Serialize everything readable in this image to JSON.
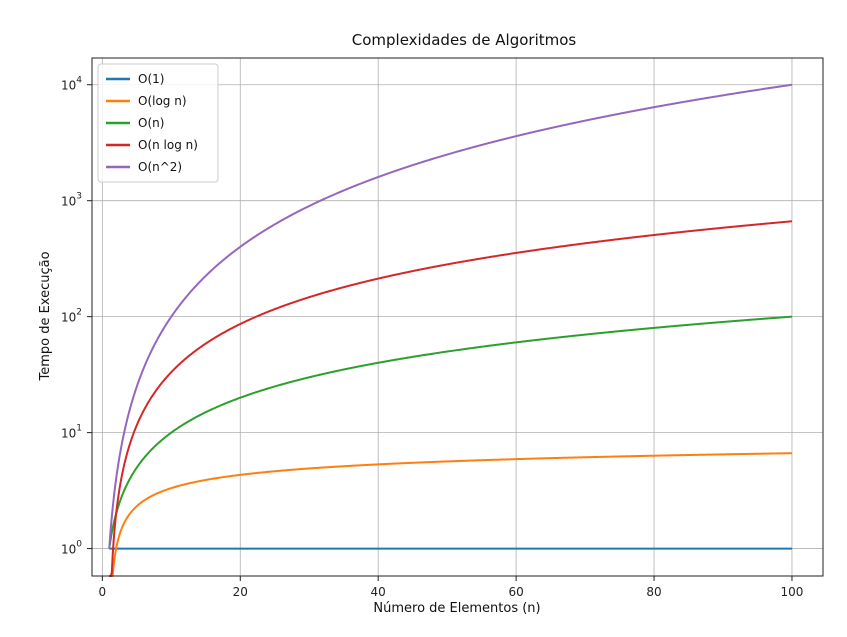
{
  "chart_data": {
    "type": "line",
    "title": "Complexidades de Algoritmos",
    "xlabel": "Número de Elementos (n)",
    "ylabel": "Tempo de Execução",
    "x_range": [
      1,
      100
    ],
    "xlim": [
      -1.5,
      104.5
    ],
    "ylim": [
      0.58,
      17000
    ],
    "yscale": "log",
    "grid": true,
    "legend_position": "top-left",
    "x_ticks": [
      0,
      20,
      40,
      60,
      80,
      100
    ],
    "y_ticks": [
      {
        "value": 1,
        "base": "10",
        "exp": "0"
      },
      {
        "value": 10,
        "base": "10",
        "exp": "1"
      },
      {
        "value": 100,
        "base": "10",
        "exp": "2"
      },
      {
        "value": 1000,
        "base": "10",
        "exp": "3"
      },
      {
        "value": 10000,
        "base": "10",
        "exp": "4"
      }
    ],
    "series": [
      {
        "name": "O(1)",
        "color": "#1f77b4",
        "formula": "1"
      },
      {
        "name": "O(log n)",
        "color": "#ff7f0e",
        "formula": "log n"
      },
      {
        "name": "O(n)",
        "color": "#2ca02c",
        "formula": "n"
      },
      {
        "name": "O(n log n)",
        "color": "#d62728",
        "formula": "n log n"
      },
      {
        "name": "O(n^2)",
        "color": "#9467bd",
        "formula": "n^2"
      }
    ]
  }
}
